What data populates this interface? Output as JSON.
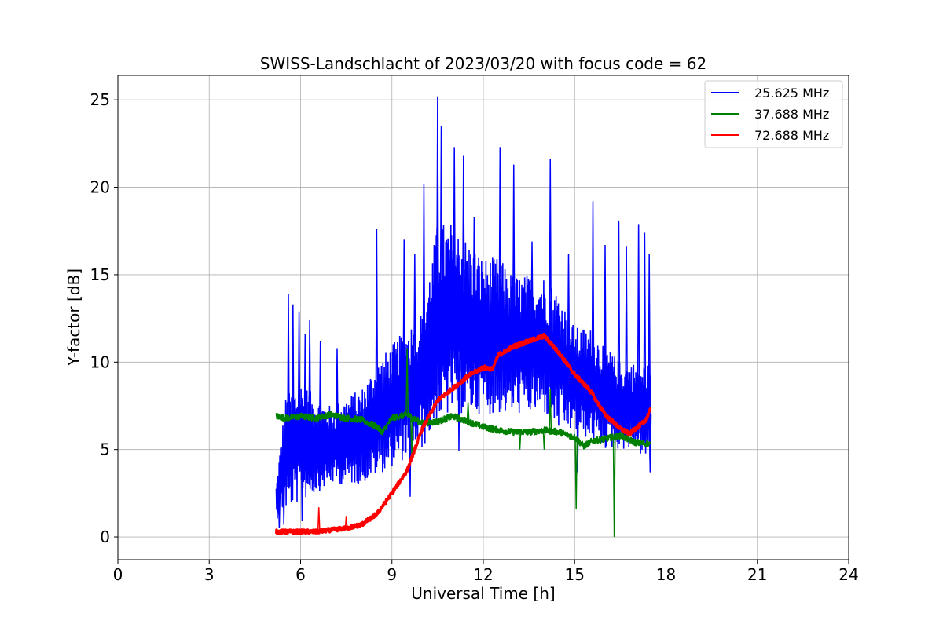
{
  "chart_data": {
    "type": "line",
    "title": "SWISS-Landschlacht of 2023/03/20 with focus code = 62",
    "xlabel": "Universal Time [h]",
    "ylabel": "Y-factor [dB]",
    "xlim": [
      0,
      24
    ],
    "ylim": [
      -1.3,
      26.4
    ],
    "xticks": [
      0,
      3,
      6,
      9,
      12,
      15,
      18,
      21,
      24
    ],
    "xtick_labels": [
      "0",
      "3",
      "6",
      "9",
      "12",
      "15",
      "18",
      "21",
      "24"
    ],
    "yticks": [
      0,
      5,
      10,
      15,
      20,
      25
    ],
    "ytick_labels": [
      "0",
      "5",
      "10",
      "15",
      "20",
      "25"
    ],
    "grid": true,
    "legend_position": "top-right",
    "series": [
      {
        "name": "25.625 MHz",
        "color": "#0000ff",
        "style": "noisy",
        "x": [
          5.2,
          5.5,
          6.0,
          6.5,
          7.0,
          7.5,
          8.0,
          8.5,
          9.0,
          9.5,
          10.0,
          10.5,
          11.0,
          11.5,
          12.0,
          12.5,
          13.0,
          13.5,
          14.0,
          14.5,
          15.0,
          15.5,
          16.0,
          16.5,
          17.0,
          17.5
        ],
        "low": [
          1.0,
          1.5,
          2.0,
          2.5,
          3.0,
          3.0,
          3.0,
          3.5,
          4.0,
          4.5,
          5.0,
          6.5,
          7.0,
          7.0,
          7.0,
          7.0,
          7.0,
          7.0,
          7.0,
          6.0,
          6.0,
          5.5,
          5.0,
          5.0,
          5.0,
          4.0
        ],
        "high": [
          3.0,
          8.0,
          9.0,
          8.0,
          7.5,
          8.0,
          8.5,
          10.0,
          11.0,
          12.0,
          13.0,
          18.0,
          18.0,
          17.0,
          16.0,
          16.0,
          15.0,
          15.0,
          15.0,
          14.0,
          12.0,
          12.0,
          11.0,
          10.0,
          10.0,
          10.0
        ],
        "spikes": [
          [
            5.6,
            13.9
          ],
          [
            5.75,
            13.3
          ],
          [
            5.95,
            12.9
          ],
          [
            6.15,
            11.6
          ],
          [
            6.3,
            12.4
          ],
          [
            6.65,
            11.2
          ],
          [
            7.2,
            10.8
          ],
          [
            8.5,
            17.6
          ],
          [
            9.4,
            17.0
          ],
          [
            9.75,
            16.2
          ],
          [
            10.05,
            20.2
          ],
          [
            10.5,
            25.2
          ],
          [
            10.62,
            23.5
          ],
          [
            11.05,
            22.3
          ],
          [
            11.35,
            21.8
          ],
          [
            11.7,
            18.3
          ],
          [
            12.55,
            22.3
          ],
          [
            13.0,
            21.3
          ],
          [
            13.6,
            16.9
          ],
          [
            14.2,
            21.6
          ],
          [
            14.8,
            16.2
          ],
          [
            15.6,
            19.2
          ],
          [
            16.0,
            16.7
          ],
          [
            16.45,
            18.1
          ],
          [
            16.7,
            16.6
          ],
          [
            17.1,
            17.9
          ],
          [
            17.3,
            17.4
          ],
          [
            17.45,
            16.2
          ]
        ],
        "dips": [
          [
            5.3,
            0.5
          ],
          [
            5.45,
            0.7
          ],
          [
            6.05,
            0.9
          ],
          [
            9.6,
            2.3
          ],
          [
            11.2,
            4.9
          ],
          [
            15.1,
            3.7
          ],
          [
            17.48,
            3.7
          ]
        ]
      },
      {
        "name": "37.688 MHz",
        "color": "#008000",
        "style": "line",
        "x": [
          5.2,
          5.5,
          6.0,
          6.5,
          7.0,
          7.5,
          8.0,
          8.5,
          8.7,
          9.0,
          9.5,
          10.0,
          10.5,
          11.0,
          11.5,
          12.0,
          12.5,
          13.0,
          13.5,
          14.0,
          14.5,
          15.0,
          15.3,
          15.6,
          16.0,
          16.5,
          17.0,
          17.5
        ],
        "y": [
          6.9,
          6.8,
          6.9,
          6.8,
          7.0,
          6.8,
          6.7,
          6.3,
          6.0,
          6.8,
          7.0,
          6.5,
          6.6,
          6.9,
          6.6,
          6.3,
          6.1,
          6.0,
          6.0,
          6.1,
          6.0,
          5.7,
          5.2,
          5.5,
          5.6,
          5.8,
          5.4,
          5.3
        ],
        "spikes": [
          [
            9.5,
            10.8
          ],
          [
            11.5,
            7.7
          ],
          [
            14.2,
            8.5
          ]
        ],
        "dips": [
          [
            9.65,
            4.7
          ],
          [
            13.2,
            5.0
          ],
          [
            14.0,
            5.0
          ],
          [
            15.05,
            1.6
          ],
          [
            16.3,
            0.0
          ]
        ]
      },
      {
        "name": "72.688 MHz",
        "color": "#ff0000",
        "style": "line",
        "x": [
          5.2,
          5.5,
          6.0,
          6.5,
          7.0,
          7.5,
          8.0,
          8.5,
          9.0,
          9.5,
          10.0,
          10.5,
          11.0,
          11.5,
          12.0,
          12.3,
          12.5,
          13.0,
          13.5,
          14.0,
          14.5,
          15.0,
          15.5,
          16.0,
          16.5,
          16.8,
          17.0,
          17.3,
          17.5
        ],
        "y": [
          0.3,
          0.3,
          0.3,
          0.3,
          0.4,
          0.5,
          0.7,
          1.3,
          2.5,
          3.8,
          6.2,
          7.8,
          8.5,
          9.2,
          9.7,
          9.6,
          10.4,
          10.9,
          11.2,
          11.5,
          10.5,
          9.3,
          8.4,
          7.0,
          6.2,
          5.9,
          6.2,
          6.6,
          7.3
        ],
        "spikes": [
          [
            6.6,
            1.7
          ],
          [
            7.5,
            1.2
          ]
        ],
        "dips": []
      }
    ]
  }
}
